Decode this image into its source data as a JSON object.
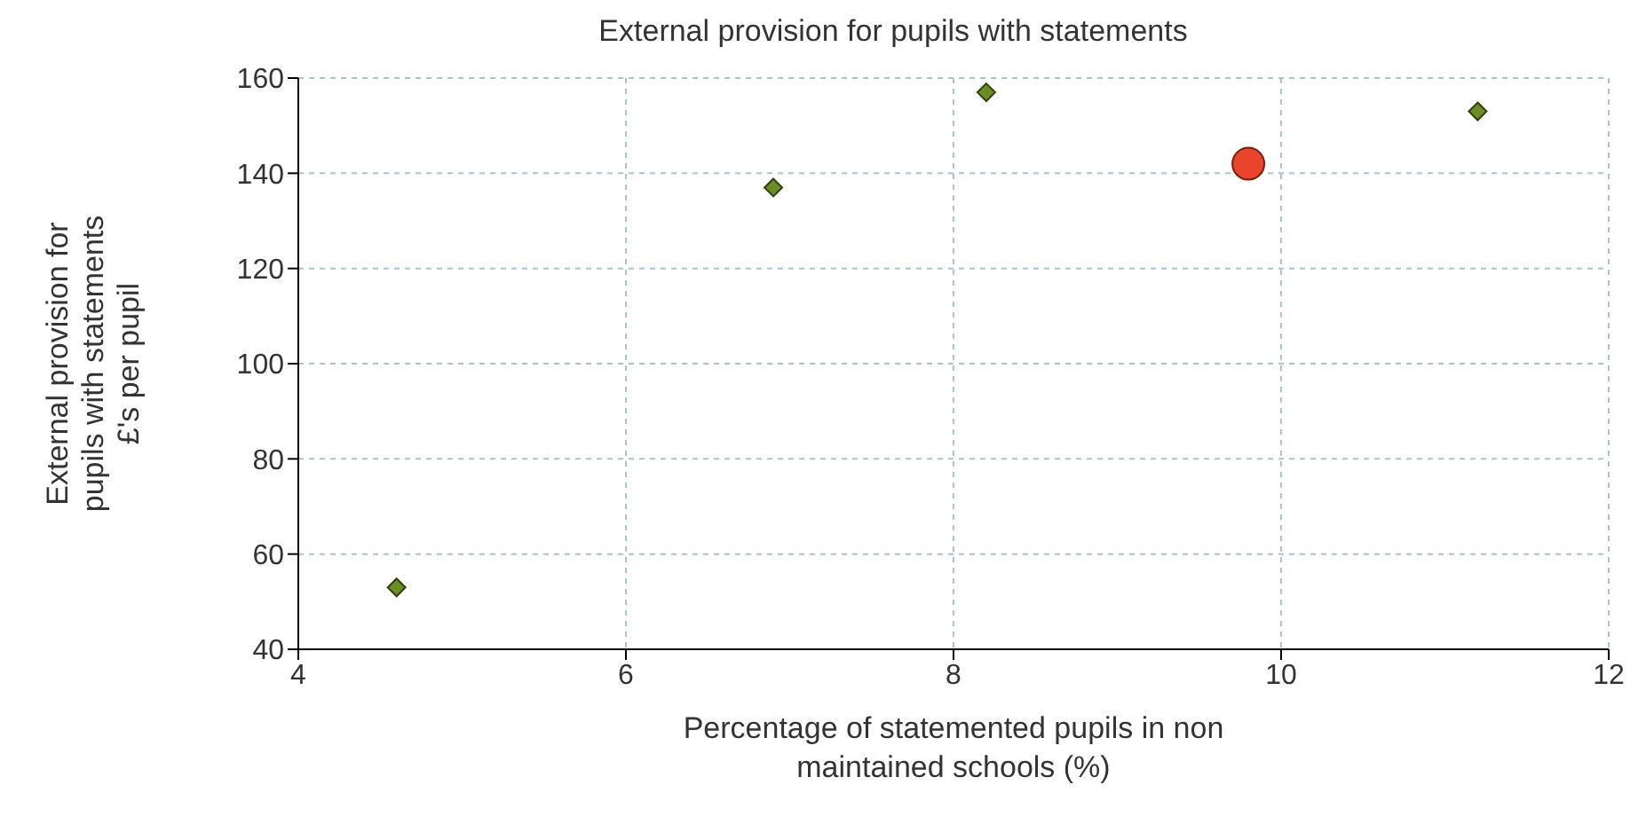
{
  "chart_data": {
    "type": "scatter",
    "title": "External provision for pupils with statements",
    "xlabel": "Percentage of statemented pupils in non maintained schools (%)",
    "ylabel": "External provision for pupils with statements £'s per pupil",
    "series": [
      {
        "color": "#6b8e23",
        "marker": "diamond",
        "x": [
          4.6,
          6.9,
          8.2,
          11.2
        ],
        "values": [
          53,
          137,
          157,
          153
        ]
      },
      {
        "color": "#e8452a",
        "marker": "circle",
        "x": [
          9.8
        ],
        "values": [
          142
        ]
      }
    ],
    "xlim": [
      4,
      12
    ],
    "xticks": [
      4,
      6,
      8,
      10,
      12
    ],
    "ylim": [
      40,
      160
    ],
    "yticks": [
      40,
      60,
      80,
      100,
      120,
      140,
      160
    ],
    "grid": true,
    "legend": false
  }
}
